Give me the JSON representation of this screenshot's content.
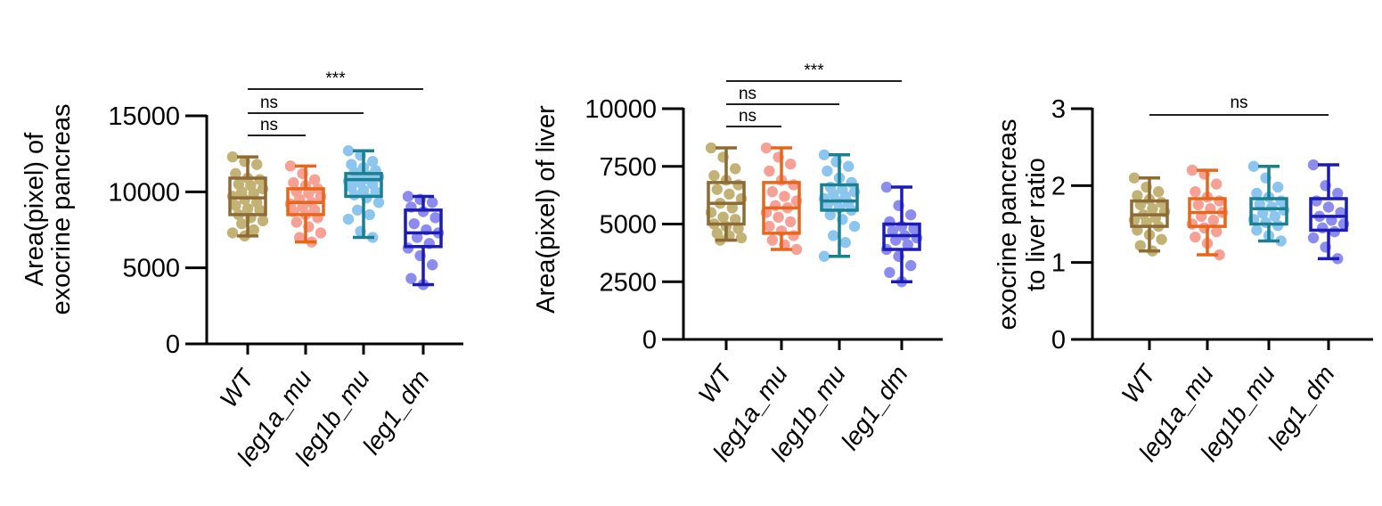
{
  "chart_data": [
    {
      "type": "box",
      "ylabel": [
        "Area(pixel) of",
        "exocrine pancreas"
      ],
      "ylim": [
        0,
        15000
      ],
      "yticks": [
        "0",
        "5000",
        "10000",
        "15000"
      ],
      "ytick_values": [
        0,
        5000,
        10000,
        15000
      ],
      "categories": [
        "WT",
        "leg1a_mu",
        "leg1b_mu",
        "leg1_dm"
      ],
      "series": [
        {
          "box": {
            "min": 7100,
            "q1": 8500,
            "median": 9600,
            "q3": 10900,
            "max": 12300
          },
          "points": [
            12300,
            12000,
            11800,
            11200,
            10900,
            10800,
            10500,
            10400,
            10200,
            10000,
            9900,
            9700,
            9500,
            9300,
            9100,
            8900,
            8800,
            8500,
            8300,
            8100,
            7900,
            7500,
            7300,
            7100
          ]
        },
        {
          "box": {
            "min": 6700,
            "q1": 8500,
            "median": 9300,
            "q3": 10200,
            "max": 11700
          },
          "points": [
            11700,
            11200,
            10800,
            10600,
            10400,
            10200,
            10000,
            9900,
            9700,
            9500,
            9300,
            9200,
            9000,
            8800,
            8700,
            8500,
            8300,
            8000,
            7700,
            7300,
            7000,
            6700
          ]
        },
        {
          "box": {
            "min": 7000,
            "q1": 9700,
            "median": 10800,
            "q3": 11200,
            "max": 12700
          },
          "points": [
            12700,
            12400,
            12000,
            11800,
            11600,
            11400,
            11300,
            11100,
            11000,
            10900,
            10800,
            10700,
            10600,
            10500,
            10300,
            10100,
            10000,
            9800,
            9600,
            9300,
            8800,
            8500,
            8200,
            7400,
            7000
          ]
        },
        {
          "box": {
            "min": 3900,
            "q1": 6400,
            "median": 7300,
            "q3": 8800,
            "max": 9700
          },
          "points": [
            9700,
            9500,
            9300,
            9000,
            8700,
            8300,
            7900,
            7500,
            7300,
            7000,
            6600,
            6300,
            5800,
            5200,
            4300,
            3900
          ]
        }
      ],
      "significance": [
        {
          "from": 0,
          "to": 1,
          "label": "ns"
        },
        {
          "from": 0,
          "to": 2,
          "label": "ns"
        },
        {
          "from": 0,
          "to": 3,
          "label": "***"
        }
      ]
    },
    {
      "type": "box",
      "ylabel": [
        "Area(pixel) of liver"
      ],
      "ylim": [
        0,
        10000
      ],
      "yticks": [
        "0",
        "2500",
        "5000",
        "7500",
        "10000"
      ],
      "ytick_values": [
        0,
        2500,
        5000,
        7500,
        10000
      ],
      "categories": [
        "WT",
        "leg1a_mu",
        "leg1b_mu",
        "leg1_dm"
      ],
      "series": [
        {
          "box": {
            "min": 4300,
            "q1": 5000,
            "median": 5900,
            "q3": 6800,
            "max": 8300
          },
          "points": [
            8300,
            7900,
            7400,
            7100,
            6900,
            6700,
            6500,
            6300,
            6100,
            5900,
            5700,
            5500,
            5300,
            5200,
            5000,
            4900,
            4800,
            4600,
            4500,
            4400,
            4300
          ]
        },
        {
          "box": {
            "min": 3900,
            "q1": 4600,
            "median": 5700,
            "q3": 6800,
            "max": 8300
          },
          "points": [
            8300,
            7900,
            7600,
            7300,
            6900,
            6700,
            6400,
            6200,
            6000,
            5800,
            5700,
            5500,
            5300,
            5100,
            4900,
            4700,
            4500,
            4300,
            4100,
            3900
          ]
        },
        {
          "box": {
            "min": 3600,
            "q1": 5600,
            "median": 6000,
            "q3": 6700,
            "max": 8000
          },
          "points": [
            8000,
            7700,
            7500,
            7300,
            7000,
            6800,
            6600,
            6500,
            6400,
            6300,
            6200,
            6100,
            6000,
            5900,
            5800,
            5700,
            5600,
            5400,
            5200,
            4900,
            4500,
            4200,
            3600
          ]
        },
        {
          "box": {
            "min": 2500,
            "q1": 3900,
            "median": 4500,
            "q3": 5000,
            "max": 6600
          },
          "points": [
            6600,
            5800,
            5400,
            5100,
            4900,
            4800,
            4700,
            4500,
            4400,
            4300,
            4100,
            3900,
            3600,
            3200,
            2900,
            2500
          ]
        }
      ],
      "significance": [
        {
          "from": 0,
          "to": 1,
          "label": "ns"
        },
        {
          "from": 0,
          "to": 2,
          "label": "ns"
        },
        {
          "from": 0,
          "to": 3,
          "label": "***"
        }
      ]
    },
    {
      "type": "box",
      "ylabel": [
        "exocrine pancreas",
        "to liver ratio"
      ],
      "ylim": [
        0,
        3
      ],
      "yticks": [
        "0",
        "1",
        "2",
        "3"
      ],
      "ytick_values": [
        0,
        1,
        2,
        3
      ],
      "categories": [
        "WT",
        "leg1a_mu",
        "leg1b_mu",
        "leg1_dm"
      ],
      "series": [
        {
          "box": {
            "min": 1.15,
            "q1": 1.47,
            "median": 1.62,
            "q3": 1.8,
            "max": 2.1
          },
          "points": [
            2.1,
            1.98,
            1.92,
            1.87,
            1.82,
            1.78,
            1.75,
            1.7,
            1.66,
            1.62,
            1.58,
            1.55,
            1.52,
            1.47,
            1.42,
            1.36,
            1.3,
            1.22,
            1.15
          ]
        },
        {
          "box": {
            "min": 1.1,
            "q1": 1.47,
            "median": 1.65,
            "q3": 1.83,
            "max": 2.2
          },
          "points": [
            2.2,
            2.15,
            2.02,
            1.92,
            1.85,
            1.8,
            1.75,
            1.7,
            1.65,
            1.6,
            1.55,
            1.5,
            1.45,
            1.4,
            1.33,
            1.25,
            1.1
          ]
        },
        {
          "box": {
            "min": 1.28,
            "q1": 1.5,
            "median": 1.7,
            "q3": 1.83,
            "max": 2.25
          },
          "points": [
            2.25,
            2.1,
            1.98,
            1.9,
            1.85,
            1.8,
            1.76,
            1.72,
            1.68,
            1.64,
            1.6,
            1.56,
            1.52,
            1.48,
            1.42,
            1.35,
            1.28
          ]
        },
        {
          "box": {
            "min": 1.05,
            "q1": 1.42,
            "median": 1.6,
            "q3": 1.83,
            "max": 2.27
          },
          "points": [
            2.27,
            2.0,
            1.9,
            1.8,
            1.72,
            1.65,
            1.6,
            1.55,
            1.5,
            1.45,
            1.4,
            1.32,
            1.2,
            1.05
          ]
        }
      ],
      "significance": [
        {
          "from": 0,
          "to": 3,
          "label": "ns"
        }
      ]
    }
  ],
  "style": {
    "box_colors": [
      "#8e6a34",
      "#e8661a",
      "#1a7f91",
      "#1b1bb5"
    ],
    "point_colors": [
      "#c2b275",
      "#f6a096",
      "#8cc6ef",
      "#8c8cee"
    ],
    "axis_color": "#000000"
  }
}
